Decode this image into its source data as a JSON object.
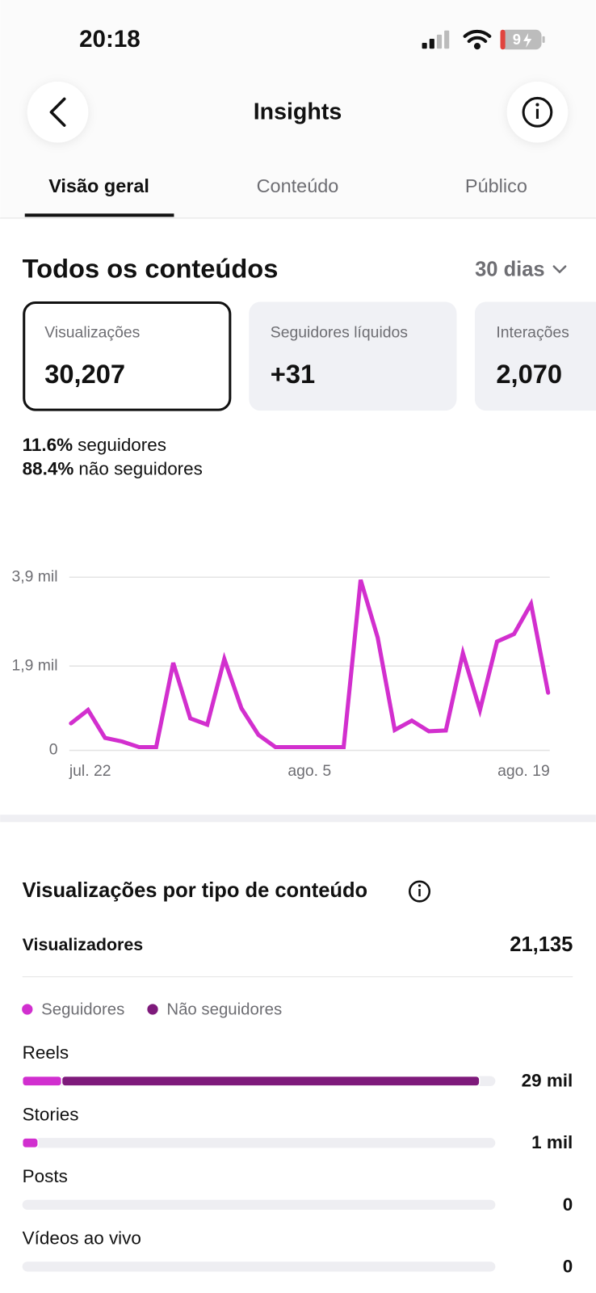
{
  "status_bar": {
    "time": "20:18",
    "battery": "9"
  },
  "header": {
    "title": "Insights"
  },
  "tabs": [
    "Visão geral",
    "Conteúdo",
    "Público"
  ],
  "section": {
    "title": "Todos os conteúdos",
    "period": "30 dias"
  },
  "metrics": [
    {
      "label": "Visualizações",
      "value": "30,207"
    },
    {
      "label": "Seguidores líquidos",
      "value": "+31"
    },
    {
      "label": "Interações",
      "value": "2,070"
    }
  ],
  "audience_split": [
    {
      "value": "11.6%",
      "label": "seguidores"
    },
    {
      "value": "88.4%",
      "label": "não seguidores"
    }
  ],
  "content_section": {
    "title": "Visualizações por tipo de conteúdo",
    "viewers_label": "Visualizadores",
    "viewers_value": "21,135"
  },
  "chart_data": [
    {
      "type": "line",
      "color": "#d22fce",
      "x": [
        "jul. 22",
        null,
        null,
        null,
        null,
        null,
        null,
        null,
        null,
        null,
        null,
        null,
        null,
        null,
        "ago. 5",
        null,
        null,
        null,
        null,
        null,
        null,
        null,
        null,
        null,
        null,
        null,
        null,
        null,
        "ago. 19"
      ],
      "values": [
        610,
        910,
        280,
        200,
        75,
        75,
        1970,
        720,
        580,
        2060,
        950,
        350,
        75,
        75,
        75,
        75,
        75,
        3840,
        2540,
        460,
        670,
        430,
        450,
        2190,
        910,
        2450,
        2620,
        3300,
        1300
      ],
      "ylim": [
        0,
        3900
      ],
      "yticks": [
        0,
        {
          "value": 1900,
          "label": "1,9 mil"
        },
        {
          "value": 3900,
          "label": "3,9 mil"
        }
      ],
      "grid": true
    },
    {
      "type": "bar",
      "orientation": "horizontal",
      "stacked": true,
      "categories": [
        "Reels",
        "Stories",
        "Posts",
        "Vídeos ao vivo"
      ],
      "series": [
        {
          "name": "Seguidores",
          "color": "#d12fcf",
          "values": [
            2.5,
            1,
            0,
            0
          ]
        },
        {
          "name": "Não seguidores",
          "color": "#7e1a7b",
          "values": [
            26.5,
            0,
            0,
            0
          ]
        }
      ],
      "totals": [
        29,
        1,
        0,
        0
      ],
      "total_labels": [
        "29 mil",
        "1 mil",
        "0",
        "0"
      ],
      "xlim": [
        0,
        30
      ]
    }
  ]
}
